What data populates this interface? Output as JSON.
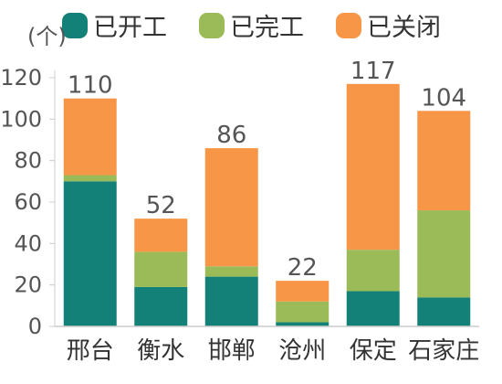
{
  "chart_data": {
    "type": "bar",
    "stacked": true,
    "unit_label": "(个)",
    "categories": [
      "邢台",
      "衡水",
      "邯郸",
      "沧州",
      "保定",
      "石家庄"
    ],
    "series": [
      {
        "name": "已开工",
        "color": "#138177",
        "values": [
          70,
          19,
          24,
          2,
          17,
          14
        ]
      },
      {
        "name": "已完工",
        "color": "#9bbb59",
        "values": [
          3,
          17,
          5,
          10,
          20,
          42
        ]
      },
      {
        "name": "已关闭",
        "color": "#f79646",
        "values": [
          37,
          16,
          57,
          10,
          80,
          48
        ]
      }
    ],
    "totals": [
      "110",
      "52",
      "86",
      "22",
      "117",
      "104"
    ],
    "ylim": [
      0,
      120
    ],
    "yticks": [
      "0",
      "20",
      "40",
      "60",
      "80",
      "100",
      "120"
    ],
    "legend_position": "top",
    "grid": false
  }
}
